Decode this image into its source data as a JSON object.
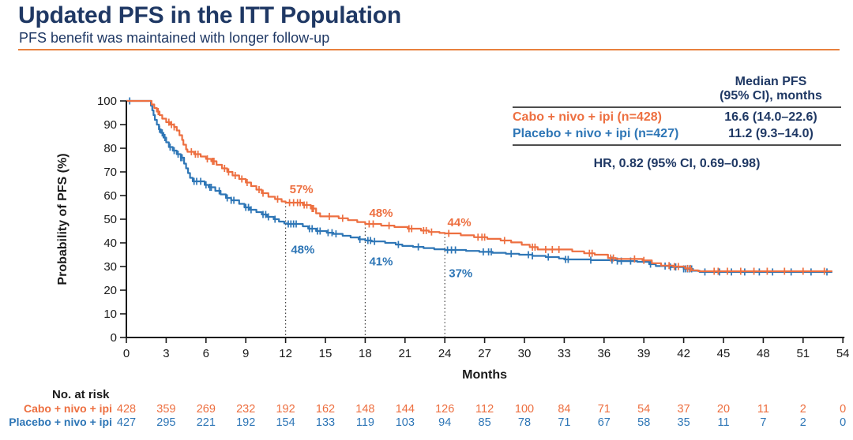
{
  "header": {
    "title": "Updated PFS in the ITT Population",
    "subtitle": "PFS benefit was maintained with longer follow-up"
  },
  "theme": {
    "navy": "#1F3864",
    "orange": "#ED6F40",
    "blue": "#2E76B6",
    "divider_orange": "#E8813E",
    "axis_black": "#1a1a1a"
  },
  "summary": {
    "header_line1": "Median PFS",
    "header_line2": "(95% CI), months",
    "rows": [
      {
        "label": "Cabo + nivo + ipi (n=428)",
        "value": "16.6 (14.0–22.6)"
      },
      {
        "label": "Placebo + nivo + ipi (n=427)",
        "value": "11.2 (9.3–14.0)"
      }
    ],
    "hr_text": "HR, 0.82 (95% CI, 0.69–0.98)"
  },
  "chart_data": {
    "type": "line",
    "subtype": "kaplan-meier-step",
    "title": "",
    "xlabel": "Months",
    "ylabel": "Probability of PFS (%)",
    "xlim": [
      0,
      54
    ],
    "xtick_step": 3,
    "ylim": [
      0,
      100
    ],
    "ytick_step": 10,
    "grid": false,
    "dotted_reference_months": [
      12,
      18,
      24
    ],
    "curve_end_month": 53.2,
    "series": [
      {
        "name": "Cabo + nivo + ipi",
        "n": 428,
        "color": "#ED6F40",
        "median_pfs": "16.6 (14.0–22.6)",
        "steps": [
          [
            0,
            100
          ],
          [
            1.9,
            98.5
          ],
          [
            2.1,
            97
          ],
          [
            2.3,
            95.5
          ],
          [
            2.5,
            94
          ],
          [
            2.7,
            92.5
          ],
          [
            3,
            91
          ],
          [
            3.3,
            90
          ],
          [
            3.6,
            89
          ],
          [
            3.8,
            87.5
          ],
          [
            4,
            85.5
          ],
          [
            4.2,
            83.5
          ],
          [
            4.3,
            81.5
          ],
          [
            4.5,
            79.5
          ],
          [
            4.6,
            78.5
          ],
          [
            5.1,
            77.5
          ],
          [
            5.6,
            76.5
          ],
          [
            6,
            75.5
          ],
          [
            6.4,
            74.5
          ],
          [
            6.8,
            73
          ],
          [
            7.2,
            71.5
          ],
          [
            7.6,
            70
          ],
          [
            8,
            68.5
          ],
          [
            8.5,
            67
          ],
          [
            9,
            65.5
          ],
          [
            9.4,
            64
          ],
          [
            9.8,
            62.5
          ],
          [
            10.2,
            61
          ],
          [
            10.7,
            59.5
          ],
          [
            11.2,
            58.5
          ],
          [
            11.7,
            57.5
          ],
          [
            12,
            57
          ],
          [
            13.3,
            56
          ],
          [
            13.9,
            54.5
          ],
          [
            14.3,
            52.5
          ],
          [
            14.6,
            51.2
          ],
          [
            16,
            50.4
          ],
          [
            16.7,
            49.6
          ],
          [
            17.4,
            48.8
          ],
          [
            18,
            48
          ],
          [
            19.2,
            47.3
          ],
          [
            20.2,
            46.7
          ],
          [
            21.2,
            46
          ],
          [
            22.2,
            45.2
          ],
          [
            22.8,
            44.6
          ],
          [
            23.6,
            44.2
          ],
          [
            24,
            44
          ],
          [
            25.2,
            43.2
          ],
          [
            26.2,
            42.4
          ],
          [
            27.2,
            41.7
          ],
          [
            28.2,
            41
          ],
          [
            29,
            40.2
          ],
          [
            29.8,
            39.2
          ],
          [
            30.4,
            38.2
          ],
          [
            31,
            37.2
          ],
          [
            33.6,
            36.4
          ],
          [
            34.5,
            35.6
          ],
          [
            35.3,
            35
          ],
          [
            36.3,
            33.6
          ],
          [
            36.9,
            33.2
          ],
          [
            38.9,
            32.6
          ],
          [
            39.6,
            31.4
          ],
          [
            40.3,
            30.4
          ],
          [
            41.2,
            30
          ],
          [
            42.1,
            29.2
          ],
          [
            42.6,
            28.4
          ],
          [
            43.1,
            28
          ]
        ],
        "censor_months": [
          2.4,
          3.2,
          3.4,
          3.6,
          4.9,
          5.2,
          5.4,
          6.1,
          6.5,
          6.6,
          7.4,
          7.7,
          8.2,
          8.7,
          9.1,
          10,
          10.3,
          11.4,
          12.3,
          12.6,
          12.9,
          13.1,
          13.4,
          13.6,
          14,
          14.1,
          15.3,
          16.3,
          18.3,
          18.6,
          19.8,
          21.3,
          21.5,
          22.4,
          22.6,
          23,
          24.3,
          26.5,
          26.8,
          27,
          28.5,
          30.6,
          30.8,
          31.6,
          32.1,
          32.6,
          34.9,
          35.1,
          36.5,
          36.7,
          38.3,
          39,
          40.9,
          41.3,
          41.6,
          42.3,
          42.5,
          44.3,
          44.6,
          45.3,
          46.3,
          47.3,
          48.3,
          49.6,
          51,
          52.6
        ]
      },
      {
        "name": "Placebo + nivo + ipi",
        "n": 427,
        "color": "#2E76B6",
        "median_pfs": "11.2 (9.3–14.0)",
        "steps": [
          [
            0,
            100
          ],
          [
            1.85,
            98
          ],
          [
            1.95,
            96
          ],
          [
            2.05,
            94
          ],
          [
            2.15,
            92
          ],
          [
            2.3,
            90
          ],
          [
            2.45,
            88
          ],
          [
            2.6,
            86.5
          ],
          [
            2.8,
            84.5
          ],
          [
            3,
            82.5
          ],
          [
            3.2,
            80.5
          ],
          [
            3.5,
            79
          ],
          [
            3.8,
            77.5
          ],
          [
            4.1,
            76
          ],
          [
            4.35,
            73.5
          ],
          [
            4.5,
            71.5
          ],
          [
            4.65,
            69.5
          ],
          [
            4.8,
            67.5
          ],
          [
            5,
            66
          ],
          [
            5.9,
            64.5
          ],
          [
            6.2,
            63.5
          ],
          [
            6.7,
            62
          ],
          [
            7.1,
            60.5
          ],
          [
            7.5,
            59
          ],
          [
            7.9,
            58
          ],
          [
            8.5,
            56.5
          ],
          [
            8.9,
            55
          ],
          [
            9.3,
            54
          ],
          [
            9.8,
            53
          ],
          [
            10.2,
            52
          ],
          [
            10.6,
            51
          ],
          [
            11.1,
            50
          ],
          [
            11.5,
            49
          ],
          [
            11.9,
            48.2
          ],
          [
            12.1,
            48
          ],
          [
            13.3,
            47
          ],
          [
            13.7,
            46
          ],
          [
            14.3,
            45
          ],
          [
            15.1,
            44.3
          ],
          [
            15.6,
            43.8
          ],
          [
            16.3,
            43
          ],
          [
            16.9,
            42.3
          ],
          [
            17.5,
            41.5
          ],
          [
            18,
            41
          ],
          [
            18.5,
            40.6
          ],
          [
            19.5,
            40
          ],
          [
            20.3,
            39.3
          ],
          [
            20.8,
            38.7
          ],
          [
            21.6,
            38.3
          ],
          [
            22.4,
            37.8
          ],
          [
            23.2,
            37.3
          ],
          [
            24,
            37
          ],
          [
            25.6,
            36.6
          ],
          [
            26.6,
            36.2
          ],
          [
            27.6,
            35.8
          ],
          [
            28.6,
            35.4
          ],
          [
            29.6,
            35
          ],
          [
            30.6,
            34.5
          ],
          [
            31.6,
            34
          ],
          [
            32.6,
            33.4
          ],
          [
            33,
            33
          ],
          [
            35,
            32.7
          ],
          [
            37,
            32.3
          ],
          [
            38.5,
            32
          ],
          [
            39.4,
            31
          ],
          [
            39.9,
            30.2
          ],
          [
            41,
            29.8
          ],
          [
            42,
            29
          ],
          [
            42.7,
            28.2
          ],
          [
            43.2,
            27.7
          ]
        ],
        "censor_months": [
          0.25,
          2.5,
          2.7,
          2.9,
          3.3,
          3.6,
          3.9,
          4.1,
          4.2,
          5.1,
          5.3,
          5.6,
          6,
          6.3,
          6.4,
          7,
          7.6,
          7.9,
          8.1,
          9,
          9.2,
          9.4,
          10.3,
          10.5,
          10.7,
          11.2,
          12.2,
          12.4,
          12.6,
          12.8,
          13.8,
          14,
          14.4,
          14.6,
          15.2,
          15.5,
          15.8,
          17.6,
          18.2,
          18.4,
          18.7,
          20.5,
          22,
          24.2,
          24.5,
          24.8,
          26.9,
          27.3,
          27.5,
          29,
          30.3,
          30.6,
          31.8,
          33.1,
          33.3,
          35,
          36.6,
          37,
          37.3,
          38,
          39.5,
          40.6,
          41,
          41.4,
          42,
          42.15,
          42.3,
          42.45,
          42.6,
          43.6,
          44.7,
          45.6,
          46.6,
          47.7,
          48.7,
          50.1,
          51.6,
          52.8
        ]
      }
    ],
    "annotations": [
      {
        "text": "57%",
        "series": 0,
        "month": 12.3,
        "pct": 61
      },
      {
        "text": "48%",
        "series": 1,
        "month": 12.4,
        "pct": 35.5
      },
      {
        "text": "48%",
        "series": 0,
        "month": 18.3,
        "pct": 51
      },
      {
        "text": "41%",
        "series": 1,
        "month": 18.3,
        "pct": 30.5
      },
      {
        "text": "44%",
        "series": 0,
        "month": 24.2,
        "pct": 47
      },
      {
        "text": "37%",
        "series": 1,
        "month": 24.3,
        "pct": 25.5
      }
    ],
    "at_risk": {
      "title": "No. at risk",
      "months": [
        0,
        3,
        6,
        9,
        12,
        15,
        18,
        21,
        24,
        27,
        30,
        33,
        36,
        39,
        42,
        45,
        48,
        51,
        54
      ],
      "rows": [
        {
          "label": "Cabo + nivo + ipi",
          "color": "#ED6F40",
          "values": [
            428,
            359,
            269,
            232,
            192,
            162,
            148,
            144,
            126,
            112,
            100,
            84,
            71,
            54,
            37,
            20,
            11,
            2,
            0
          ]
        },
        {
          "label": "Placebo + nivo + ipi",
          "color": "#2E76B6",
          "values": [
            427,
            295,
            221,
            192,
            154,
            133,
            119,
            103,
            94,
            85,
            78,
            71,
            67,
            58,
            35,
            11,
            7,
            2,
            0
          ]
        }
      ]
    }
  }
}
